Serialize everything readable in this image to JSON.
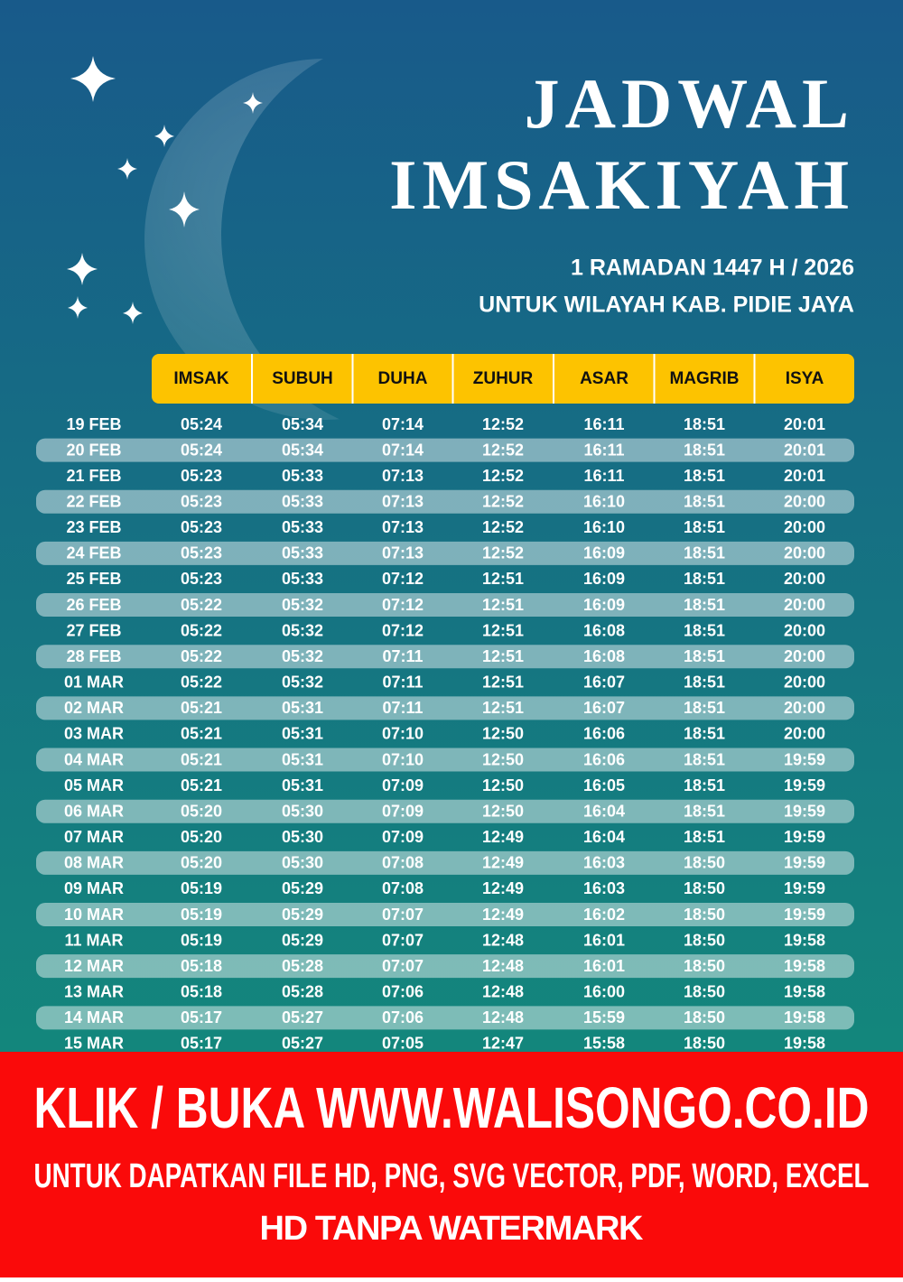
{
  "header": {
    "title_lines": [
      "JADWAL",
      "IMSAKIYAH"
    ],
    "subtitle": "1 RAMADAN 1447 H / 2026",
    "region": "UNTUK WILAYAH KAB. PIDIE JAYA"
  },
  "table": {
    "columns": [
      "IMSAK",
      "SUBUH",
      "DUHA",
      "ZUHUR",
      "ASAR",
      "MAGRIB",
      "ISYA"
    ],
    "rows": [
      [
        "19 FEB",
        "05:24",
        "05:34",
        "07:14",
        "12:52",
        "16:11",
        "18:51",
        "20:01"
      ],
      [
        "20 FEB",
        "05:24",
        "05:34",
        "07:14",
        "12:52",
        "16:11",
        "18:51",
        "20:01"
      ],
      [
        "21 FEB",
        "05:23",
        "05:33",
        "07:13",
        "12:52",
        "16:11",
        "18:51",
        "20:01"
      ],
      [
        "22 FEB",
        "05:23",
        "05:33",
        "07:13",
        "12:52",
        "16:10",
        "18:51",
        "20:00"
      ],
      [
        "23 FEB",
        "05:23",
        "05:33",
        "07:13",
        "12:52",
        "16:10",
        "18:51",
        "20:00"
      ],
      [
        "24 FEB",
        "05:23",
        "05:33",
        "07:13",
        "12:52",
        "16:09",
        "18:51",
        "20:00"
      ],
      [
        "25 FEB",
        "05:23",
        "05:33",
        "07:12",
        "12:51",
        "16:09",
        "18:51",
        "20:00"
      ],
      [
        "26 FEB",
        "05:22",
        "05:32",
        "07:12",
        "12:51",
        "16:09",
        "18:51",
        "20:00"
      ],
      [
        "27 FEB",
        "05:22",
        "05:32",
        "07:12",
        "12:51",
        "16:08",
        "18:51",
        "20:00"
      ],
      [
        "28 FEB",
        "05:22",
        "05:32",
        "07:11",
        "12:51",
        "16:08",
        "18:51",
        "20:00"
      ],
      [
        "01 MAR",
        "05:22",
        "05:32",
        "07:11",
        "12:51",
        "16:07",
        "18:51",
        "20:00"
      ],
      [
        "02 MAR",
        "05:21",
        "05:31",
        "07:11",
        "12:51",
        "16:07",
        "18:51",
        "20:00"
      ],
      [
        "03 MAR",
        "05:21",
        "05:31",
        "07:10",
        "12:50",
        "16:06",
        "18:51",
        "20:00"
      ],
      [
        "04 MAR",
        "05:21",
        "05:31",
        "07:10",
        "12:50",
        "16:06",
        "18:51",
        "19:59"
      ],
      [
        "05 MAR",
        "05:21",
        "05:31",
        "07:09",
        "12:50",
        "16:05",
        "18:51",
        "19:59"
      ],
      [
        "06 MAR",
        "05:20",
        "05:30",
        "07:09",
        "12:50",
        "16:04",
        "18:51",
        "19:59"
      ],
      [
        "07 MAR",
        "05:20",
        "05:30",
        "07:09",
        "12:49",
        "16:04",
        "18:51",
        "19:59"
      ],
      [
        "08 MAR",
        "05:20",
        "05:30",
        "07:08",
        "12:49",
        "16:03",
        "18:50",
        "19:59"
      ],
      [
        "09 MAR",
        "05:19",
        "05:29",
        "07:08",
        "12:49",
        "16:03",
        "18:50",
        "19:59"
      ],
      [
        "10 MAR",
        "05:19",
        "05:29",
        "07:07",
        "12:49",
        "16:02",
        "18:50",
        "19:59"
      ],
      [
        "11 MAR",
        "05:19",
        "05:29",
        "07:07",
        "12:48",
        "16:01",
        "18:50",
        "19:58"
      ],
      [
        "12 MAR",
        "05:18",
        "05:28",
        "07:07",
        "12:48",
        "16:01",
        "18:50",
        "19:58"
      ],
      [
        "13 MAR",
        "05:18",
        "05:28",
        "07:06",
        "12:48",
        "16:00",
        "18:50",
        "19:58"
      ],
      [
        "14 MAR",
        "05:17",
        "05:27",
        "07:06",
        "12:48",
        "15:59",
        "18:50",
        "19:58"
      ],
      [
        "15 MAR",
        "05:17",
        "05:27",
        "07:05",
        "12:47",
        "15:58",
        "18:50",
        "19:58"
      ]
    ]
  },
  "banner": {
    "line1": "KLIK / BUKA WWW.WALISONGO.CO.ID",
    "line2": "UNTUK DAPATKAN FILE HD, PNG, SVG VECTOR, PDF, WORD, EXCEL",
    "line3": "HD TANPA WATERMARK"
  }
}
